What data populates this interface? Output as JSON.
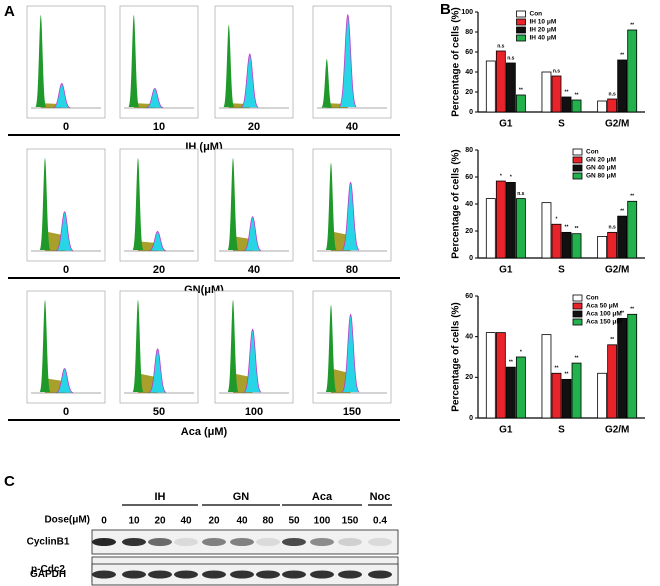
{
  "panel_labels": [
    "A",
    "B",
    "C"
  ],
  "flow": {
    "rows": [
      {
        "doses": [
          "0",
          "10",
          "20",
          "40"
        ],
        "agent": "IH (μM)"
      },
      {
        "doses": [
          "0",
          "20",
          "40",
          "80"
        ],
        "agent": "GN(μM)"
      },
      {
        "doses": [
          "0",
          "50",
          "100",
          "150"
        ],
        "agent": "Aca (μM)"
      }
    ]
  },
  "chart_data": [
    {
      "type": "bar",
      "y_label": "Percentage of cells (%)",
      "categories": [
        "G1",
        "S",
        "G2/M"
      ],
      "ylim": [
        0,
        100
      ],
      "yticks": [
        0,
        20,
        40,
        60,
        80,
        100
      ],
      "legend": "upper center",
      "series": [
        {
          "name": "Con",
          "color": "#ffffff",
          "values": [
            51,
            40,
            11
          ]
        },
        {
          "name": "IH  10 μM",
          "color": "#e8242a",
          "values": [
            61,
            36,
            13
          ],
          "annotations": [
            "n.s",
            "n.s",
            "n.s"
          ]
        },
        {
          "name": "IH  20 μM",
          "color": "#111111",
          "values": [
            49,
            15,
            52
          ],
          "annotations": [
            "n.s",
            "**",
            "**"
          ]
        },
        {
          "name": "IH  40 μM",
          "color": "#22b14c",
          "values": [
            17,
            12,
            82
          ],
          "annotations": [
            "**",
            "**",
            "**"
          ]
        }
      ]
    },
    {
      "type": "bar",
      "y_label": "Percentage of cells (%)",
      "categories": [
        "G1",
        "S",
        "G2/M"
      ],
      "ylim": [
        0,
        80
      ],
      "yticks": [
        0,
        20,
        40,
        60,
        80
      ],
      "legend": "upper right",
      "series": [
        {
          "name": "Con",
          "color": "#ffffff",
          "values": [
            44,
            41,
            16
          ]
        },
        {
          "name": "GN 20 μM",
          "color": "#e8242a",
          "values": [
            57,
            25,
            19
          ],
          "annotations": [
            "*",
            "*",
            "n.s"
          ]
        },
        {
          "name": "GN 40 μM",
          "color": "#111111",
          "values": [
            56,
            19,
            31
          ],
          "annotations": [
            "*",
            "**",
            "**"
          ]
        },
        {
          "name": "GN 80 μM",
          "color": "#22b14c",
          "values": [
            44,
            18,
            42
          ],
          "annotations": [
            "n.s",
            "**",
            "**"
          ]
        }
      ]
    },
    {
      "type": "bar",
      "y_label": "Percentage of cells (%)",
      "categories": [
        "G1",
        "S",
        "G2/M"
      ],
      "ylim": [
        0,
        60
      ],
      "yticks": [
        0,
        20,
        40,
        60
      ],
      "legend": "upper right",
      "series": [
        {
          "name": "Con",
          "color": "#ffffff",
          "values": [
            42,
            41,
            22
          ]
        },
        {
          "name": "Aca 50 μM",
          "color": "#e8242a",
          "values": [
            42,
            22,
            36
          ],
          "annotations": [
            null,
            "**",
            "**"
          ]
        },
        {
          "name": "Aca 100 μM",
          "color": "#111111",
          "values": [
            25,
            19,
            49
          ],
          "annotations": [
            "**",
            "**",
            "**"
          ]
        },
        {
          "name": "Aca 150 μM",
          "color": "#22b14c",
          "values": [
            30,
            27,
            51
          ],
          "annotations": [
            "*",
            "**",
            "**"
          ]
        }
      ]
    }
  ],
  "blot": {
    "groups": [
      "IH",
      "GN",
      "Aca",
      "Noc"
    ],
    "dose_label": "Dose(μM)",
    "doses": [
      "0",
      "10",
      "20",
      "40",
      "20",
      "40",
      "80",
      "50",
      "100",
      "150",
      "0.4"
    ],
    "rows": [
      "CyclinB1",
      "p-Cdc2",
      "GAPDH"
    ]
  }
}
